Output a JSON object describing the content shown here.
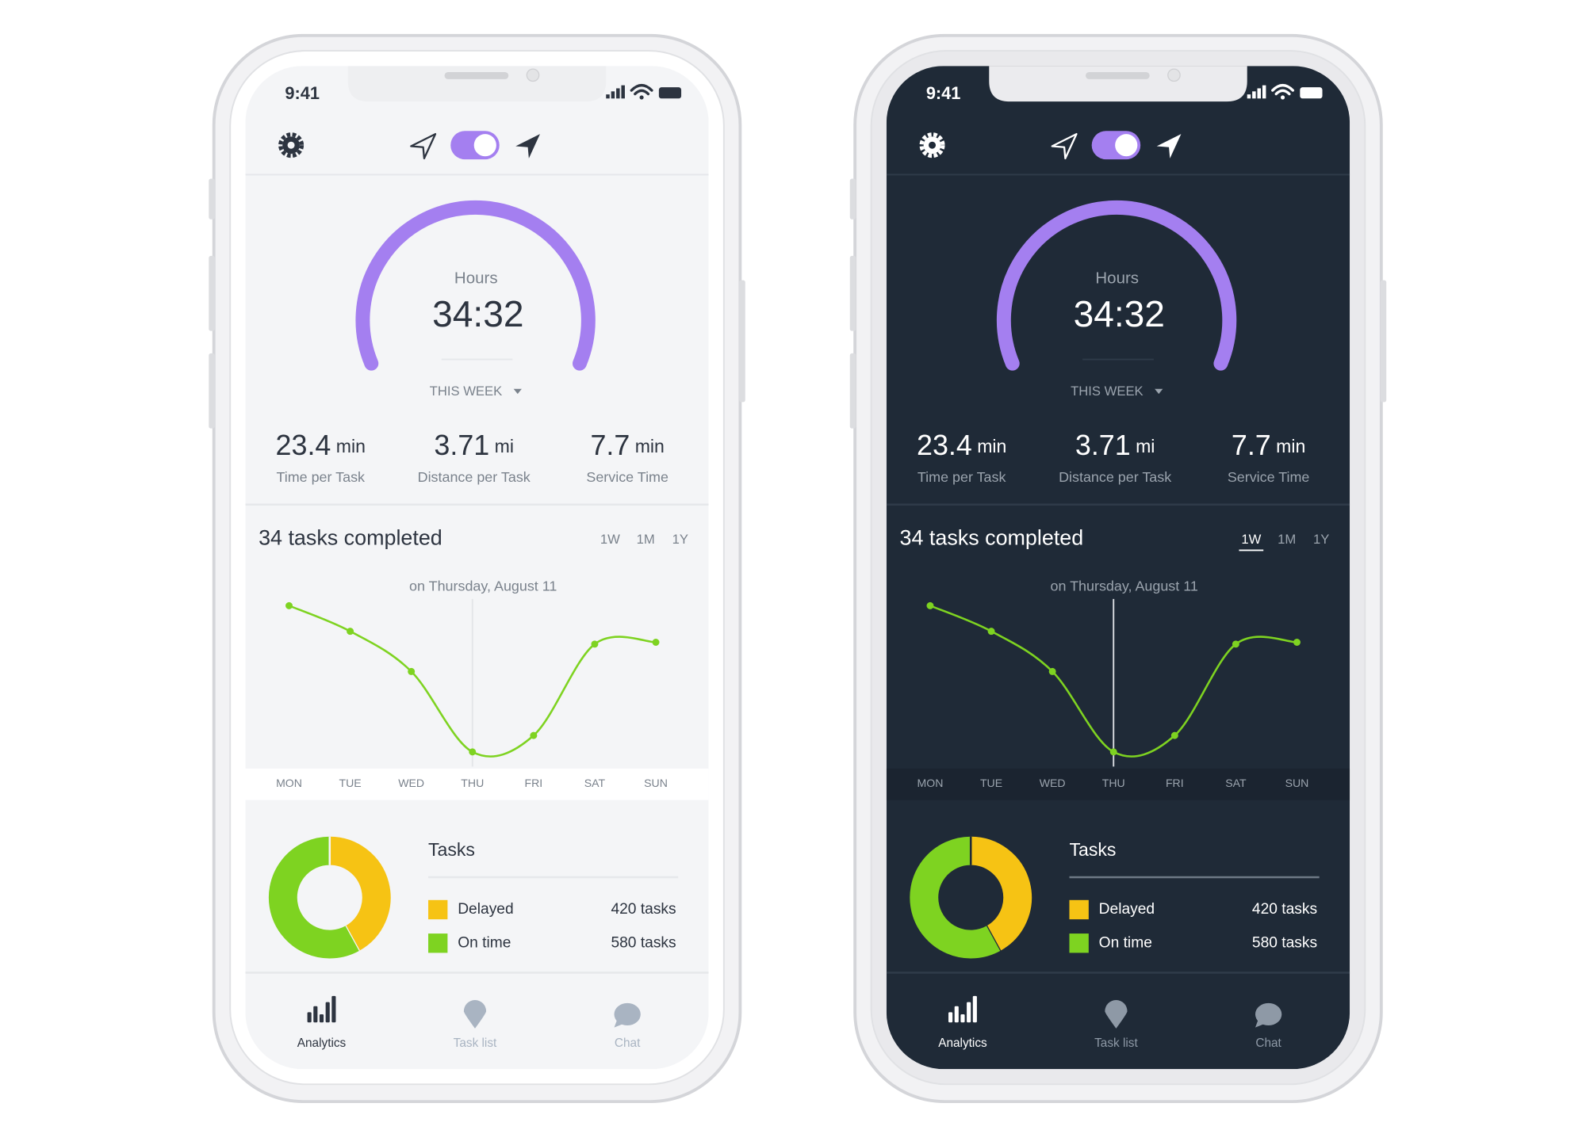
{
  "status_time": "9:41",
  "gauge": {
    "label": "Hours",
    "value": "34:32",
    "period": "THIS WEEK"
  },
  "stats": [
    {
      "value": "23.4",
      "unit": "min",
      "label": "Time per Task"
    },
    {
      "value": "3.71",
      "unit": "mi",
      "label": "Distance per Task"
    },
    {
      "value": "7.7",
      "unit": "min",
      "label": "Service Time"
    }
  ],
  "tasks_chart": {
    "type": "line",
    "title": "34 tasks completed",
    "ranges": [
      "1W",
      "1M",
      "1Y"
    ],
    "annotation": "on Thursday, August 11",
    "categories": [
      "MON",
      "TUE",
      "WED",
      "THU",
      "FRI",
      "SAT",
      "SUN"
    ],
    "values": [
      88,
      74,
      52,
      8,
      17,
      67,
      68
    ],
    "color": "#7ed321",
    "ylim": [
      0,
      100
    ]
  },
  "tasks_donut": {
    "type": "pie",
    "title": "Tasks",
    "categories": [
      "Delayed",
      "On time"
    ],
    "values": [
      420,
      580
    ],
    "value_labels": [
      "420 tasks",
      "580 tasks"
    ],
    "colors": [
      "#f6c314",
      "#7ed321"
    ]
  },
  "tabs": [
    "Analytics",
    "Task list",
    "Chat"
  ]
}
